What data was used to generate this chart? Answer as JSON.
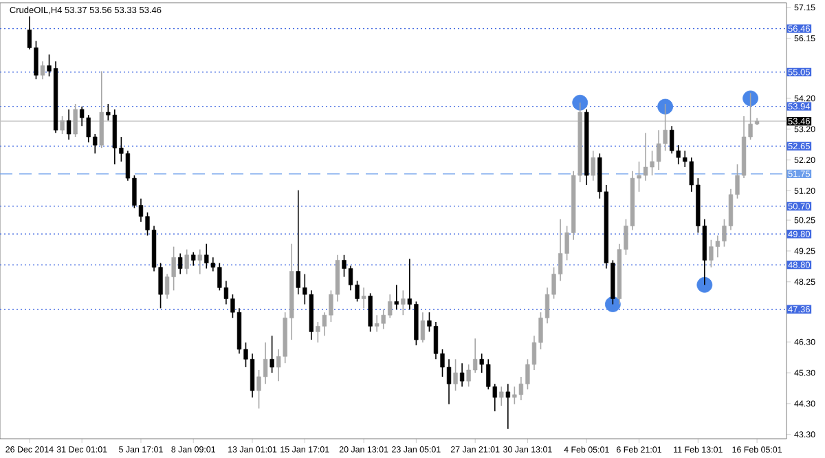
{
  "chart_data": {
    "type": "candlestick",
    "title": "CrudeOIL,H4 53.37 53.56 53.33 53.46",
    "categories": [
      "26 Dec 2014",
      null,
      null,
      null,
      null,
      null,
      null,
      null,
      "31 Dec 01:01",
      null,
      null,
      null,
      null,
      null,
      null,
      null,
      null,
      "5 Jan 17:01",
      null,
      null,
      null,
      null,
      null,
      null,
      null,
      "8 Jan 09:01",
      null,
      null,
      null,
      null,
      null,
      null,
      null,
      null,
      "13 Jan 01:01",
      null,
      null,
      null,
      null,
      null,
      null,
      null,
      "15 Jan 17:01",
      null,
      null,
      null,
      null,
      null,
      null,
      null,
      null,
      "20 Jan 13:01",
      null,
      null,
      null,
      null,
      null,
      null,
      null,
      "23 Jan 05:01",
      null,
      null,
      null,
      null,
      null,
      null,
      null,
      null,
      "27 Jan 21:01",
      null,
      null,
      null,
      null,
      null,
      null,
      null,
      "30 Jan 13:01",
      null,
      null,
      null,
      null,
      null,
      null,
      null,
      null,
      "4 Feb 05:01",
      null,
      null,
      null,
      null,
      null,
      null,
      null,
      "6 Feb 21:01",
      null,
      null,
      null,
      null,
      null,
      null,
      null,
      null,
      "11 Feb 13:01",
      null,
      null,
      null,
      null,
      null,
      null,
      null,
      null,
      "16 Feb 05:01",
      null,
      null,
      null,
      null
    ],
    "ohlc": [
      [
        56.42,
        56.86,
        55.79,
        55.84
      ],
      [
        55.84,
        56.06,
        54.82,
        54.95
      ],
      [
        54.95,
        55.4,
        54.82,
        55.26
      ],
      [
        55.26,
        55.62,
        54.91,
        55.08
      ],
      [
        55.17,
        55.4,
        53.08,
        53.17
      ],
      [
        53.17,
        53.62,
        53.04,
        53.48
      ],
      [
        53.48,
        53.84,
        52.86,
        53.04
      ],
      [
        53.04,
        54.02,
        52.95,
        53.84
      ],
      [
        53.84,
        53.93,
        53.3,
        53.57
      ],
      [
        53.57,
        53.66,
        52.77,
        52.95
      ],
      [
        52.95,
        53.04,
        52.41,
        52.68
      ],
      [
        52.68,
        55.08,
        52.59,
        53.75
      ],
      [
        53.75,
        54.02,
        53.48,
        53.66
      ],
      [
        53.66,
        53.84,
        52.06,
        52.59
      ],
      [
        52.59,
        52.95,
        52.15,
        52.41
      ],
      [
        52.41,
        52.5,
        51.53,
        51.61
      ],
      [
        51.61,
        51.7,
        50.64,
        50.73
      ],
      [
        50.73,
        50.95,
        50.19,
        50.37
      ],
      [
        50.37,
        50.5,
        49.75,
        49.93
      ],
      [
        49.93,
        50.06,
        48.59,
        48.72
      ],
      [
        48.72,
        48.86,
        47.39,
        47.84
      ],
      [
        47.84,
        48.5,
        47.7,
        48.41
      ],
      [
        48.41,
        49.39,
        47.97,
        49.04
      ],
      [
        49.04,
        49.17,
        48.5,
        48.68
      ],
      [
        48.68,
        49.3,
        48.5,
        49.12
      ],
      [
        49.12,
        49.21,
        48.77,
        48.95
      ],
      [
        48.95,
        49.3,
        48.5,
        49.12
      ],
      [
        49.12,
        49.48,
        48.68,
        48.86
      ],
      [
        48.86,
        49.04,
        48.59,
        48.72
      ],
      [
        48.72,
        48.86,
        47.97,
        48.06
      ],
      [
        48.06,
        48.28,
        47.52,
        47.7
      ],
      [
        47.7,
        47.84,
        47.08,
        47.26
      ],
      [
        47.26,
        47.39,
        45.92,
        46.06
      ],
      [
        46.06,
        46.28,
        45.48,
        45.74
      ],
      [
        45.74,
        45.92,
        44.5,
        44.72
      ],
      [
        44.72,
        45.39,
        44.14,
        45.17
      ],
      [
        45.17,
        46.28,
        44.94,
        45.74
      ],
      [
        45.74,
        46.5,
        45.3,
        45.48
      ],
      [
        45.48,
        46.06,
        45.03,
        45.83
      ],
      [
        45.83,
        47.26,
        45.61,
        47.08
      ],
      [
        47.08,
        49.48,
        46.37,
        48.59
      ],
      [
        48.59,
        51.22,
        47.84,
        48.06
      ],
      [
        48.06,
        48.5,
        47.52,
        47.84
      ],
      [
        47.84,
        47.97,
        46.37,
        46.63
      ],
      [
        46.63,
        46.95,
        46.28,
        46.81
      ],
      [
        46.81,
        47.26,
        46.5,
        47.17
      ],
      [
        47.17,
        47.97,
        46.95,
        47.84
      ],
      [
        47.84,
        49.12,
        47.61,
        48.95
      ],
      [
        48.95,
        49.12,
        48.41,
        48.68
      ],
      [
        48.68,
        48.77,
        47.97,
        48.15
      ],
      [
        48.15,
        48.28,
        47.61,
        47.7
      ],
      [
        47.7,
        48.06,
        47.39,
        47.79
      ],
      [
        47.79,
        47.88,
        46.63,
        46.81
      ],
      [
        46.81,
        47.17,
        46.63,
        46.9
      ],
      [
        46.9,
        47.35,
        46.72,
        47.17
      ],
      [
        47.17,
        47.84,
        47.08,
        47.61
      ],
      [
        47.61,
        48.15,
        47.35,
        47.52
      ],
      [
        47.52,
        47.97,
        47.17,
        47.7
      ],
      [
        47.7,
        48.99,
        47.35,
        47.52
      ],
      [
        47.52,
        47.61,
        46.19,
        46.37
      ],
      [
        46.37,
        47.26,
        46.28,
        46.99
      ],
      [
        46.99,
        47.26,
        46.63,
        46.81
      ],
      [
        46.81,
        46.95,
        45.74,
        45.92
      ],
      [
        45.92,
        46.06,
        45.17,
        45.48
      ],
      [
        45.48,
        45.74,
        44.28,
        44.94
      ],
      [
        44.94,
        45.74,
        44.72,
        45.3
      ],
      [
        45.3,
        45.61,
        44.85,
        45.03
      ],
      [
        45.03,
        45.57,
        44.85,
        45.39
      ],
      [
        45.39,
        46.41,
        45.3,
        45.74
      ],
      [
        45.74,
        45.92,
        45.3,
        45.57
      ],
      [
        45.57,
        45.74,
        44.76,
        44.85
      ],
      [
        44.85,
        44.94,
        44.05,
        44.5
      ],
      [
        44.5,
        44.85,
        44.23,
        44.68
      ],
      [
        44.68,
        44.94,
        43.48,
        44.5
      ],
      [
        44.5,
        44.85,
        44.28,
        44.59
      ],
      [
        44.59,
        45.17,
        44.41,
        44.94
      ],
      [
        44.94,
        45.74,
        44.76,
        45.57
      ],
      [
        45.57,
        46.5,
        45.39,
        46.28
      ],
      [
        46.28,
        47.26,
        46.06,
        47.08
      ],
      [
        47.08,
        48.06,
        46.9,
        47.84
      ],
      [
        47.84,
        48.72,
        47.7,
        48.5
      ],
      [
        48.5,
        50.28,
        48.28,
        49.17
      ],
      [
        49.17,
        50.06,
        48.95,
        49.84
      ],
      [
        49.84,
        51.84,
        49.61,
        51.7
      ],
      [
        51.7,
        54.06,
        51.48,
        53.75
      ],
      [
        53.75,
        53.84,
        51.39,
        51.7
      ],
      [
        51.7,
        52.5,
        51.53,
        52.28
      ],
      [
        52.28,
        52.41,
        50.95,
        51.17
      ],
      [
        51.17,
        51.39,
        48.68,
        48.86
      ],
      [
        48.86,
        48.95,
        47.52,
        47.7
      ],
      [
        47.7,
        49.48,
        47.52,
        49.3
      ],
      [
        49.3,
        50.28,
        49.12,
        50.06
      ],
      [
        50.06,
        51.84,
        49.93,
        51.61
      ],
      [
        51.61,
        52.15,
        51.17,
        51.7
      ],
      [
        51.7,
        53.08,
        51.53,
        51.97
      ],
      [
        51.97,
        52.5,
        51.7,
        52.15
      ],
      [
        52.15,
        53.17,
        51.88,
        52.73
      ],
      [
        52.73,
        54.02,
        52.5,
        53.17
      ],
      [
        53.17,
        53.3,
        52.41,
        52.5
      ],
      [
        52.5,
        52.68,
        52.06,
        52.28
      ],
      [
        52.28,
        52.5,
        51.97,
        52.15
      ],
      [
        52.15,
        52.28,
        51.17,
        51.39
      ],
      [
        51.39,
        51.61,
        49.84,
        50.06
      ],
      [
        50.06,
        50.28,
        48.15,
        48.95
      ],
      [
        48.95,
        49.61,
        48.72,
        49.39
      ],
      [
        49.39,
        49.75,
        49.04,
        49.57
      ],
      [
        49.57,
        50.28,
        49.39,
        50.06
      ],
      [
        50.06,
        51.26,
        49.93,
        51.08
      ],
      [
        51.08,
        52.06,
        50.95,
        51.7
      ],
      [
        51.7,
        53.62,
        51.61,
        52.95
      ],
      [
        52.95,
        54.37,
        52.86,
        53.37
      ],
      [
        53.37,
        53.56,
        53.33,
        53.46
      ],
      null,
      null,
      null,
      null
    ],
    "colors": [
      "#000000",
      "#000000",
      "#a6a6a6",
      "#000000",
      "#000000",
      "#a6a6a6",
      "#000000",
      "#a6a6a6",
      "#000000",
      "#000000",
      "#000000",
      "#a6a6a6",
      "#000000",
      "#000000",
      "#000000",
      "#000000",
      "#000000",
      "#000000",
      "#000000",
      "#000000",
      "#000000",
      "#a6a6a6",
      "#a6a6a6",
      "#000000",
      "#a6a6a6",
      "#000000",
      "#a6a6a6",
      "#000000",
      "#000000",
      "#000000",
      "#000000",
      "#000000",
      "#000000",
      "#000000",
      "#000000",
      "#a6a6a6",
      "#a6a6a6",
      "#000000",
      "#a6a6a6",
      "#a6a6a6",
      "#a6a6a6",
      "#000000",
      "#000000",
      "#000000",
      "#a6a6a6",
      "#a6a6a6",
      "#a6a6a6",
      "#a6a6a6",
      "#000000",
      "#000000",
      "#000000",
      "#a6a6a6",
      "#000000",
      "#a6a6a6",
      "#a6a6a6",
      "#a6a6a6",
      "#000000",
      "#a6a6a6",
      "#000000",
      "#000000",
      "#a6a6a6",
      "#000000",
      "#000000",
      "#000000",
      "#000000",
      "#a6a6a6",
      "#000000",
      "#a6a6a6",
      "#a6a6a6",
      "#000000",
      "#000000",
      "#000000",
      "#a6a6a6",
      "#000000",
      "#a6a6a6",
      "#a6a6a6",
      "#a6a6a6",
      "#a6a6a6",
      "#a6a6a6",
      "#a6a6a6",
      "#a6a6a6",
      "#a6a6a6",
      "#a6a6a6",
      "#a6a6a6",
      "#a6a6a6",
      "#000000",
      "#a6a6a6",
      "#000000",
      "#000000",
      "#000000",
      "#a6a6a6",
      "#a6a6a6",
      "#a6a6a6",
      "#a6a6a6",
      "#a6a6a6",
      "#a6a6a6",
      "#a6a6a6",
      "#a6a6a6",
      "#000000",
      "#000000",
      "#000000",
      "#000000",
      "#000000",
      "#000000",
      "#a6a6a6",
      "#a6a6a6",
      "#a6a6a6",
      "#a6a6a6",
      "#a6a6a6",
      "#a6a6a6",
      "#a6a6a6",
      "#a6a6a6",
      null,
      null,
      null,
      null
    ],
    "marker": "circle",
    "series": [
      {
        "type": "scatter",
        "color": "#4a86e8",
        "values": [
          null,
          null,
          null,
          null,
          null,
          null,
          null,
          null,
          null,
          null,
          null,
          null,
          null,
          null,
          null,
          null,
          null,
          null,
          null,
          null,
          null,
          null,
          null,
          null,
          null,
          null,
          null,
          null,
          null,
          null,
          null,
          null,
          null,
          null,
          null,
          null,
          null,
          null,
          null,
          null,
          null,
          null,
          null,
          null,
          null,
          null,
          null,
          null,
          null,
          null,
          null,
          null,
          null,
          null,
          null,
          null,
          null,
          null,
          null,
          null,
          null,
          null,
          null,
          null,
          null,
          null,
          null,
          null,
          null,
          null,
          null,
          null,
          null,
          null,
          null,
          null,
          null,
          null,
          null,
          null,
          null,
          null,
          null,
          null,
          54.06,
          null,
          null,
          null,
          null,
          47.52,
          null,
          null,
          null,
          null,
          null,
          null,
          null,
          53.93,
          null,
          null,
          null,
          null,
          null,
          48.15,
          null,
          null,
          null,
          null,
          null,
          null,
          54.2,
          null,
          null,
          null,
          null,
          null
        ]
      }
    ],
    "ylim": [
      43.16,
      57.3
    ],
    "yticks": [
      57.15,
      56.15,
      {
        "value": 54.2,
        "label": "54.20"
      },
      {
        "value": 53.2,
        "label": "53.20"
      },
      {
        "value": 52.2,
        "label": "52.20"
      },
      {
        "value": 51.2,
        "label": "51.20"
      },
      50.25,
      49.25,
      48.25,
      {
        "value": 46.3,
        "label": "46.30"
      },
      {
        "value": 45.3,
        "label": "45.30"
      },
      {
        "value": 44.3,
        "label": "44.30"
      },
      {
        "value": 43.3,
        "label": "43.30"
      }
    ],
    "ref_lines": [
      {
        "axis": "y",
        "value": 56.46,
        "label": "56.46",
        "color": "#4169e1",
        "line_style": "dotted"
      },
      {
        "axis": "y",
        "value": 55.05,
        "label": "55.05",
        "color": "#4169e1",
        "line_style": "dotted"
      },
      {
        "axis": "y",
        "value": 53.94,
        "label": "53.94",
        "color": "#4169e1",
        "line_style": "dotted"
      },
      {
        "axis": "y",
        "value": 53.46,
        "label": "53.46",
        "color": "#c0c0c0",
        "line_style": "solid"
      },
      {
        "axis": "y",
        "value": 52.65,
        "label": "52.65",
        "color": "#4169e1",
        "line_style": "dotted"
      },
      {
        "axis": "y",
        "value": 51.75,
        "label": "51.75",
        "color": "#6d9eeb",
        "line_style": "dashed"
      },
      {
        "axis": "y",
        "value": 50.7,
        "label": "50.70",
        "color": "#4169e1",
        "line_style": "dotted"
      },
      {
        "axis": "y",
        "value": 49.8,
        "label": "49.80",
        "color": "#4169e1",
        "line_style": "dotted"
      },
      {
        "axis": "y",
        "value": 48.8,
        "label": "48.80",
        "color": "#4169e1",
        "line_style": "dotted"
      },
      {
        "axis": "y",
        "value": 47.36,
        "label": "47.36",
        "color": "#4169e1",
        "line_style": "dotted"
      }
    ],
    "grid": false
  }
}
